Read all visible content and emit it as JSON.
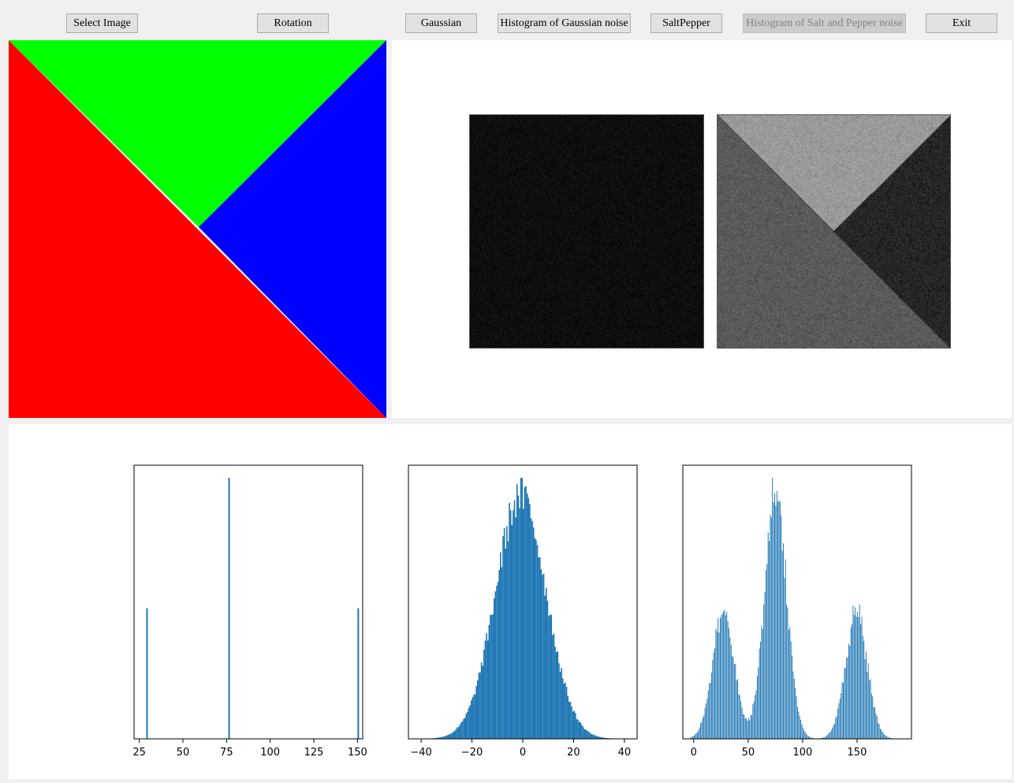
{
  "toolbar": {
    "buttons": [
      {
        "id": "select-image-button",
        "label": "Select Image",
        "enabled": true
      },
      {
        "id": "rotation-button",
        "label": "Rotation",
        "enabled": true
      },
      {
        "id": "gaussian-button",
        "label": "Gaussian",
        "enabled": true
      },
      {
        "id": "histogram-gaussian-button",
        "label": "Histogram of Gaussian noise",
        "enabled": true
      },
      {
        "id": "saltpepper-button",
        "label": "SaltPepper",
        "enabled": true
      },
      {
        "id": "histogram-saltpepper-button",
        "label": "Histogram of Salt and Pepper noise",
        "enabled": false
      },
      {
        "id": "exit-button",
        "label": "Exit",
        "enabled": true
      }
    ]
  },
  "input_image": {
    "colors": {
      "red": "#ff0000",
      "green": "#00ff00",
      "blue": "#0000ff"
    }
  },
  "result_images": {
    "noise_image": {
      "base_gray": "#0e0e0e"
    },
    "noisy_gray_image": {
      "top": "#9a9a9a",
      "left": "#5a5a5a",
      "right": "#262626"
    }
  },
  "accent_color": "#1f77b4",
  "chart_data": [
    {
      "type": "bar",
      "title": "",
      "xlabel": "",
      "ylabel": "",
      "xlim": [
        22,
        153
      ],
      "xticks": [
        25,
        50,
        75,
        100,
        125,
        150
      ],
      "bars": [
        {
          "x": 29,
          "y": 0.5
        },
        {
          "x": 76,
          "y": 1.0
        },
        {
          "x": 150,
          "y": 0.5
        }
      ]
    },
    {
      "type": "bar",
      "title": "",
      "xlabel": "",
      "ylabel": "",
      "xlim": [
        -45,
        45
      ],
      "xticks": [
        -40,
        -20,
        0,
        20,
        40
      ],
      "distribution": {
        "shape": "gaussian",
        "mean": -1,
        "sigma": 10
      }
    },
    {
      "type": "bar",
      "title": "",
      "xlabel": "",
      "ylabel": "",
      "xlim": [
        -10,
        200
      ],
      "xticks": [
        0,
        50,
        100,
        150
      ],
      "distribution": {
        "shape": "mixture",
        "components": [
          {
            "mean": 27,
            "sigma": 10,
            "weight": 0.5
          },
          {
            "mean": 75,
            "sigma": 10,
            "weight": 1.0
          },
          {
            "mean": 149,
            "sigma": 10,
            "weight": 0.5
          }
        ]
      }
    }
  ]
}
